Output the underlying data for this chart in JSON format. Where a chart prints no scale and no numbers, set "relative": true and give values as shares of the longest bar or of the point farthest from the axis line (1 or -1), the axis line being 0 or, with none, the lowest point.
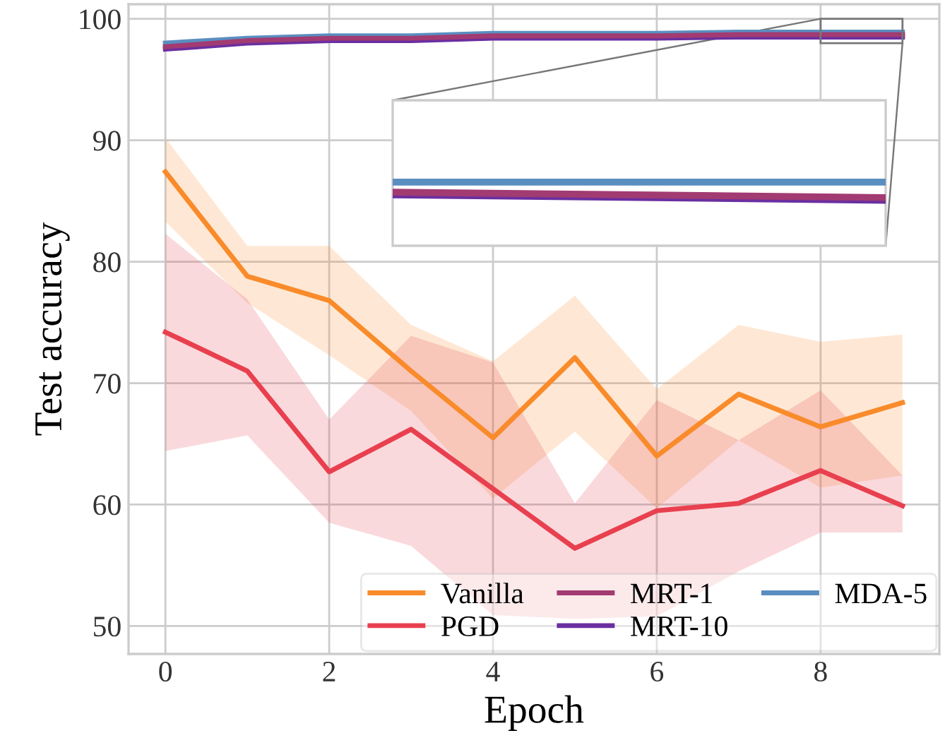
{
  "chart_data": [
    {
      "type": "line",
      "xlabel": "Epoch",
      "ylabel": "Test accuracy",
      "x": [
        0,
        1,
        2,
        3,
        4,
        5,
        6,
        7,
        8,
        9
      ],
      "xlim": [
        -0.45,
        9.45
      ],
      "ylim": [
        47.7,
        101.2
      ],
      "xticks": [
        0,
        2,
        4,
        6,
        8
      ],
      "yticks": [
        50,
        60,
        70,
        80,
        90,
        100
      ],
      "grid": true,
      "legend": "bottom right",
      "line_style": "solid",
      "marker": "none",
      "series": [
        {
          "name": "Vanilla",
          "color": "#f98b2b",
          "values": [
            87.4,
            78.8,
            76.8,
            71.0,
            65.5,
            72.1,
            64.0,
            69.1,
            66.4,
            68.4
          ],
          "lower": [
            83.3,
            76.6,
            72.3,
            67.7,
            60.5,
            66.0,
            59.7,
            65.3,
            61.4,
            62.4
          ],
          "upper": [
            90.2,
            81.3,
            81.3,
            74.8,
            71.8,
            77.2,
            69.5,
            74.8,
            73.4,
            74.0
          ]
        },
        {
          "name": "PGD",
          "color": "#e8404f",
          "values": [
            74.2,
            71.0,
            62.7,
            66.2,
            61.3,
            56.4,
            59.5,
            60.1,
            62.8,
            59.9
          ],
          "lower": [
            64.4,
            65.7,
            58.5,
            56.6,
            50.9,
            50.6,
            50.8,
            54.5,
            57.7,
            57.7
          ],
          "upper": [
            82.3,
            76.9,
            67.0,
            73.9,
            71.7,
            60.1,
            68.6,
            65.3,
            69.4,
            62.4
          ]
        },
        {
          "name": "MRT-1",
          "color": "#a23b72",
          "values": [
            97.7,
            98.2,
            98.4,
            98.4,
            98.6,
            98.6,
            98.6,
            98.7,
            98.7,
            98.7
          ]
        },
        {
          "name": "MRT-10",
          "color": "#6a2fa0",
          "values": [
            97.5,
            98.0,
            98.2,
            98.2,
            98.4,
            98.4,
            98.4,
            98.5,
            98.5,
            98.5
          ]
        },
        {
          "name": "MDA-5",
          "color": "#5a8ec0",
          "values": [
            98.0,
            98.4,
            98.6,
            98.6,
            98.8,
            98.8,
            98.8,
            98.9,
            98.9,
            98.9
          ]
        }
      ]
    },
    {
      "type": "line",
      "relative": true,
      "categories": [
        null,
        null
      ],
      "grid": false,
      "line_style": "solid",
      "marker": "none",
      "series": [
        {
          "color": "#a23b72",
          "values": [
            0.45,
            0.15
          ]
        },
        {
          "color": "#6a2fa0",
          "values": [
            0.3,
            0
          ]
        },
        {
          "color": "#5a8ec0",
          "values": [
            1,
            1
          ]
        }
      ]
    }
  ]
}
